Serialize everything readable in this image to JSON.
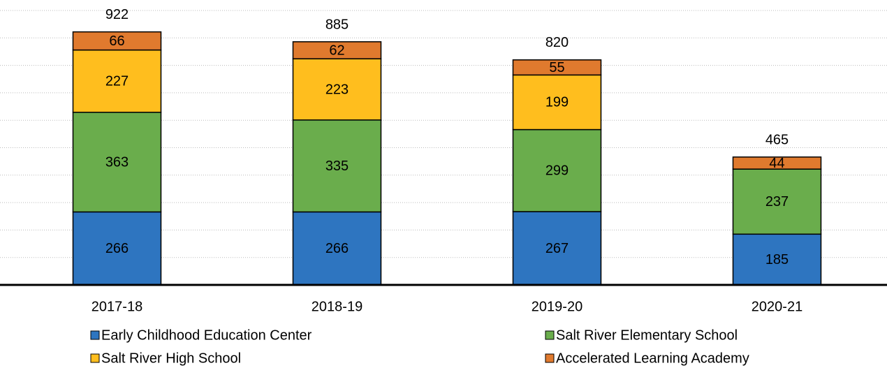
{
  "chart_data": {
    "type": "stacked_bar",
    "categories": [
      "2017-18",
      "2018-19",
      "2019-20",
      "2020-21"
    ],
    "series": [
      {
        "name": "Early Childhood Education Center",
        "color": "#2e75c0",
        "values": [
          266,
          266,
          267,
          185
        ]
      },
      {
        "name": "Salt River Elementary School",
        "color": "#6aad4c",
        "values": [
          363,
          335,
          299,
          237
        ]
      },
      {
        "name": "Salt River High School",
        "color": "#ffbe1e",
        "values": [
          227,
          223,
          199,
          null
        ]
      },
      {
        "name": "Accelerated Learning Academy",
        "color": "#e07a2e",
        "values": [
          66,
          62,
          55,
          44
        ]
      }
    ],
    "totals": [
      922,
      885,
      820,
      465
    ],
    "ylim": [
      0,
      1000
    ],
    "yticks": [
      0,
      100,
      200,
      300,
      400,
      500,
      600,
      700,
      800,
      900,
      1000
    ],
    "grid": true
  }
}
